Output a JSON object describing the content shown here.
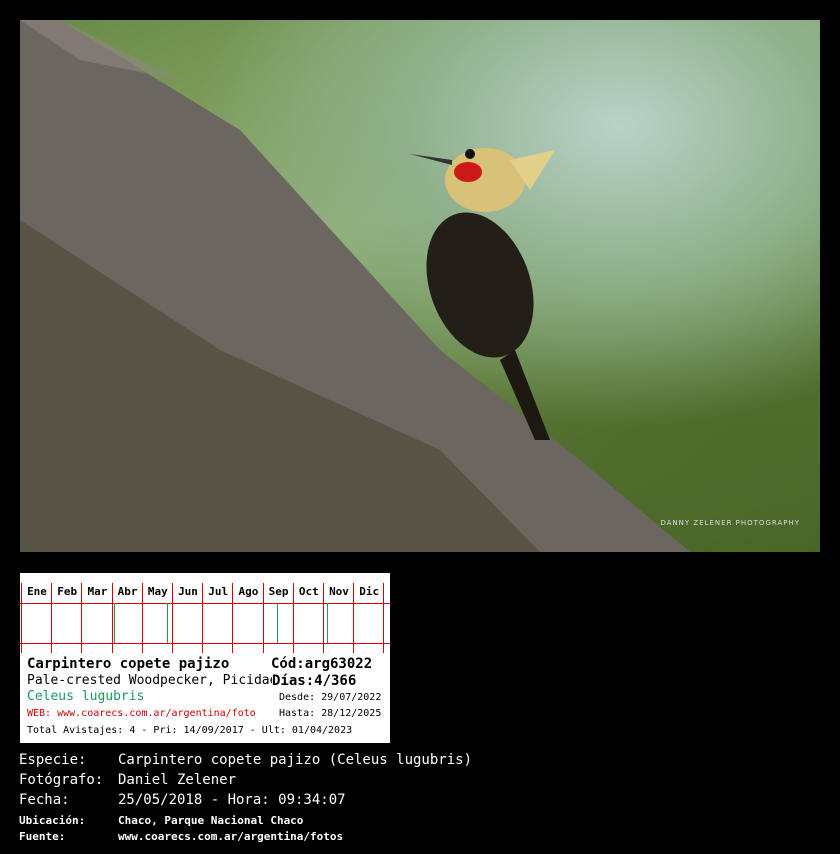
{
  "photo": {
    "watermark": "DANNY ZELENER PHOTOGRAPHY",
    "subject": "woodpecker on tree trunk"
  },
  "card": {
    "months": [
      "Ene",
      "Feb",
      "Mar",
      "Abr",
      "May",
      "Jun",
      "Jul",
      "Ago",
      "Sep",
      "Oct",
      "Nov",
      "Dic"
    ],
    "sighting_marks": [
      {
        "month": 4,
        "day": 1
      },
      {
        "month": 5,
        "day": 25
      },
      {
        "month": 9,
        "day": 14
      },
      {
        "month": 11,
        "day": 3
      }
    ],
    "common_name": "Carpintero copete pajizo",
    "code": "Cód:arg63022",
    "english_name": "Pale-crested Woodpecker, Picidae",
    "days": "Días:4/366",
    "scientific_name": "Celeus lugubris",
    "desde": "Desde: 29/07/2022",
    "web": "WEB: www.coarecs.com.ar/argentina/foto",
    "hasta": "Hasta: 28/12/2025",
    "totals": "Total Avistajes: 4 - Pri: 14/09/2017 - Ult: 01/04/2023",
    "colors": {
      "grid": "#dd0000",
      "mark": "#1a9a5a",
      "scientific": "#1a9a5a",
      "web": "#cc0000"
    }
  },
  "info": {
    "especie_label": "Especie:",
    "especie": "Carpintero copete pajizo (Celeus lugubris)",
    "fotografo_label": "Fotógrafo:",
    "fotografo": "Daniel Zelener",
    "fecha_label": "Fecha:",
    "fecha": "25/05/2018 - Hora: 09:34:07",
    "ubicacion_label": "Ubicación:",
    "ubicacion": "Chaco, Parque Nacional Chaco",
    "fuente_label": "Fuente:",
    "fuente": "www.coarecs.com.ar/argentina/fotos"
  }
}
